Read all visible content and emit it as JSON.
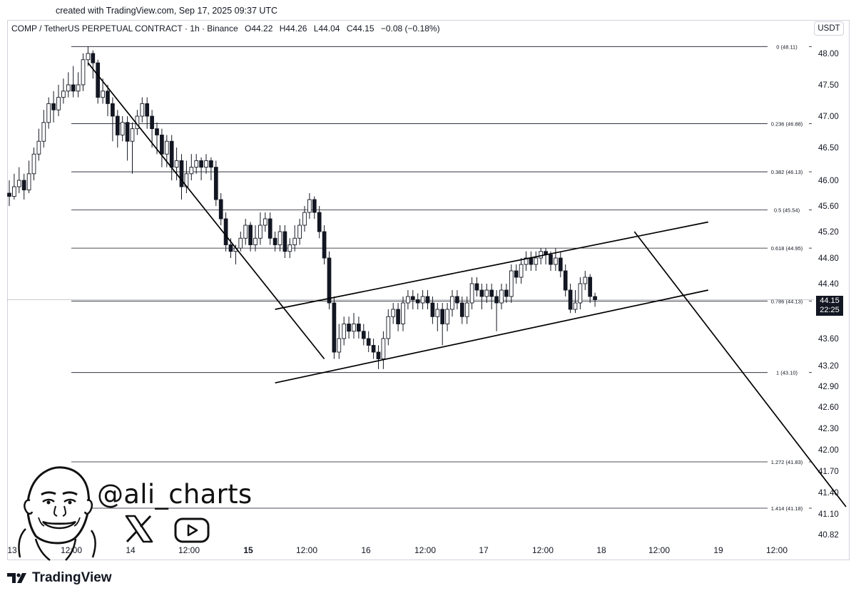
{
  "created_line": "created with TradingView.com, Sep 17, 2025 09:37 UTC",
  "header": {
    "symbol": "COMP / TetherUS PERPETUAL CONTRACT · 1h · Binance",
    "open": "O44.22",
    "high": "H44.26",
    "low": "L44.04",
    "close": "C44.15",
    "change": "−0.08 (−0.18%)"
  },
  "currency": "USDT",
  "price_tag": {
    "price": "44.15",
    "countdown": "22:25"
  },
  "social": {
    "handle": "@ali_charts",
    "icons": [
      "x-logo-icon",
      "youtube-play-icon"
    ]
  },
  "brand": {
    "name": "TradingView",
    "icon": "tradingview-logo-icon"
  },
  "chart_data": {
    "type": "candlestick",
    "y_ticks": [
      48.0,
      47.5,
      47.0,
      46.5,
      46.0,
      45.6,
      45.2,
      44.8,
      44.4,
      44.0,
      43.6,
      43.2,
      42.9,
      42.6,
      42.3,
      42.0,
      41.7,
      41.4,
      41.1,
      40.82
    ],
    "y_tick_labels": [
      "48.00",
      "47.50",
      "47.00",
      "46.50",
      "46.00",
      "45.60",
      "45.20",
      "44.80",
      "44.40",
      "44.00",
      "43.60",
      "43.20",
      "42.90",
      "42.60",
      "42.30",
      "42.00",
      "41.70",
      "41.40",
      "41.10",
      "40.82"
    ],
    "x_ticks": [
      {
        "label": "13",
        "bold": false
      },
      {
        "label": "12:00",
        "bold": false
      },
      {
        "label": "14",
        "bold": false
      },
      {
        "label": "12:00",
        "bold": false
      },
      {
        "label": "15",
        "bold": true
      },
      {
        "label": "12:00",
        "bold": false
      },
      {
        "label": "16",
        "bold": false
      },
      {
        "label": "12:00",
        "bold": false
      },
      {
        "label": "17",
        "bold": false
      },
      {
        "label": "12:00",
        "bold": false
      },
      {
        "label": "18",
        "bold": false
      },
      {
        "label": "12:00",
        "bold": false
      },
      {
        "label": "19",
        "bold": false
      },
      {
        "label": "12:00",
        "bold": false
      }
    ],
    "fib_levels": [
      {
        "ratio": "0",
        "price": 48.11,
        "label": "0 (48.11)"
      },
      {
        "ratio": "0.236",
        "price": 46.88,
        "label": "0.236 (46.88)"
      },
      {
        "ratio": "0.382",
        "price": 46.13,
        "label": "0.382 (46.13)"
      },
      {
        "ratio": "0.5",
        "price": 45.54,
        "label": "0.5 (45.54)"
      },
      {
        "ratio": "0.618",
        "price": 44.95,
        "label": "0.618 (44.95)"
      },
      {
        "ratio": "0.786",
        "price": 44.13,
        "label": "0.786 (44.13)"
      },
      {
        "ratio": "1",
        "price": 43.1,
        "label": "1 (43.10)"
      },
      {
        "ratio": "1.272",
        "price": 41.83,
        "label": "1.272 (41.83)"
      },
      {
        "ratio": "1.414",
        "price": 41.18,
        "label": "1.414 (41.18)"
      }
    ],
    "last_price": 44.15,
    "candles": [
      [
        45.8,
        45.75,
        46.0,
        45.6
      ],
      [
        45.75,
        45.9,
        46.1,
        45.7
      ],
      [
        45.9,
        46.0,
        46.2,
        45.8
      ],
      [
        46.0,
        45.85,
        46.1,
        45.7
      ],
      [
        45.85,
        46.1,
        46.3,
        45.8
      ],
      [
        46.1,
        46.4,
        46.5,
        46.0
      ],
      [
        46.4,
        46.6,
        46.8,
        46.3
      ],
      [
        46.6,
        46.9,
        47.1,
        46.5
      ],
      [
        46.9,
        47.2,
        47.3,
        46.8
      ],
      [
        47.2,
        47.1,
        47.4,
        46.9
      ],
      [
        47.1,
        47.3,
        47.5,
        47.0
      ],
      [
        47.3,
        47.4,
        47.6,
        47.2
      ],
      [
        47.4,
        47.5,
        47.7,
        47.3
      ],
      [
        47.5,
        47.4,
        47.8,
        47.3
      ],
      [
        47.4,
        47.5,
        47.7,
        47.3
      ],
      [
        47.5,
        47.9,
        48.0,
        47.4
      ],
      [
        47.9,
        48.0,
        48.11,
        47.8
      ],
      [
        48.0,
        47.85,
        48.05,
        47.6
      ],
      [
        47.85,
        47.3,
        47.9,
        47.2
      ],
      [
        47.3,
        47.4,
        47.6,
        47.2
      ],
      [
        47.4,
        47.2,
        47.5,
        47.0
      ],
      [
        47.2,
        47.0,
        47.3,
        46.6
      ],
      [
        47.0,
        46.7,
        47.1,
        46.5
      ],
      [
        46.7,
        46.9,
        47.0,
        46.6
      ],
      [
        46.9,
        46.6,
        47.0,
        46.3
      ],
      [
        46.6,
        46.8,
        46.9,
        46.1
      ],
      [
        46.8,
        47.0,
        47.1,
        46.7
      ],
      [
        47.0,
        47.2,
        47.3,
        46.9
      ],
      [
        47.2,
        47.0,
        47.3,
        46.8
      ],
      [
        47.0,
        46.8,
        47.1,
        46.5
      ],
      [
        46.8,
        46.7,
        46.9,
        46.4
      ],
      [
        46.7,
        46.4,
        46.8,
        46.2
      ],
      [
        46.4,
        46.6,
        46.7,
        46.2
      ],
      [
        46.6,
        46.2,
        46.7,
        46.0
      ],
      [
        46.2,
        46.3,
        46.5,
        46.0
      ],
      [
        46.3,
        45.9,
        46.4,
        45.7
      ],
      [
        45.9,
        46.1,
        46.3,
        45.8
      ],
      [
        46.1,
        46.2,
        46.4,
        46.0
      ],
      [
        46.2,
        46.3,
        46.4,
        46.1
      ],
      [
        46.3,
        46.2,
        46.35,
        46.0
      ],
      [
        46.2,
        46.3,
        46.4,
        46.1
      ],
      [
        46.3,
        46.2,
        46.35,
        46.0
      ],
      [
        46.2,
        45.7,
        46.3,
        45.6
      ],
      [
        45.7,
        45.4,
        45.8,
        45.3
      ],
      [
        45.4,
        45.0,
        45.5,
        44.9
      ],
      [
        45.0,
        44.9,
        45.1,
        44.8
      ],
      [
        44.9,
        44.95,
        45.0,
        44.7
      ],
      [
        44.95,
        45.1,
        45.2,
        44.9
      ],
      [
        45.1,
        45.3,
        45.4,
        45.0
      ],
      [
        45.3,
        45.0,
        45.35,
        44.9
      ],
      [
        45.0,
        45.1,
        45.3,
        44.9
      ],
      [
        45.1,
        45.3,
        45.5,
        45.0
      ],
      [
        45.3,
        45.4,
        45.5,
        45.2
      ],
      [
        45.4,
        45.1,
        45.5,
        45.0
      ],
      [
        45.1,
        45.0,
        45.2,
        44.9
      ],
      [
        45.0,
        45.2,
        45.3,
        44.9
      ],
      [
        45.2,
        44.9,
        45.3,
        44.8
      ],
      [
        44.9,
        45.0,
        45.1,
        44.8
      ],
      [
        45.0,
        45.1,
        45.3,
        44.9
      ],
      [
        45.1,
        45.3,
        45.4,
        45.0
      ],
      [
        45.3,
        45.5,
        45.6,
        45.2
      ],
      [
        45.5,
        45.7,
        45.8,
        45.4
      ],
      [
        45.7,
        45.5,
        45.75,
        45.4
      ],
      [
        45.5,
        45.2,
        45.6,
        45.1
      ],
      [
        45.2,
        44.8,
        45.3,
        44.7
      ],
      [
        44.8,
        44.1,
        44.9,
        44.0
      ],
      [
        44.1,
        43.4,
        44.2,
        43.3
      ],
      [
        43.4,
        43.6,
        43.8,
        43.3
      ],
      [
        43.6,
        43.8,
        43.9,
        43.5
      ],
      [
        43.8,
        43.7,
        43.9,
        43.6
      ],
      [
        43.7,
        43.8,
        43.95,
        43.6
      ],
      [
        43.8,
        43.7,
        43.9,
        43.6
      ],
      [
        43.7,
        43.6,
        43.8,
        43.5
      ],
      [
        43.6,
        43.5,
        43.7,
        43.4
      ],
      [
        43.5,
        43.4,
        43.6,
        43.3
      ],
      [
        43.4,
        43.3,
        43.5,
        43.15
      ],
      [
        43.3,
        43.6,
        43.7,
        43.15
      ],
      [
        43.6,
        43.9,
        44.0,
        43.5
      ],
      [
        43.9,
        44.0,
        44.1,
        43.8
      ],
      [
        44.0,
        43.8,
        44.1,
        43.7
      ],
      [
        43.8,
        44.1,
        44.2,
        43.7
      ],
      [
        44.1,
        44.2,
        44.3,
        44.0
      ],
      [
        44.2,
        44.15,
        44.3,
        44.0
      ],
      [
        44.15,
        44.1,
        44.25,
        44.0
      ],
      [
        44.1,
        44.2,
        44.3,
        44.0
      ],
      [
        44.2,
        44.1,
        44.3,
        44.0
      ],
      [
        44.1,
        43.9,
        44.2,
        43.8
      ],
      [
        43.9,
        44.0,
        44.1,
        43.7
      ],
      [
        44.0,
        43.8,
        44.1,
        43.5
      ],
      [
        43.8,
        44.0,
        44.1,
        43.7
      ],
      [
        44.0,
        44.2,
        44.3,
        43.9
      ],
      [
        44.2,
        44.1,
        44.3,
        44.0
      ],
      [
        44.1,
        43.9,
        44.2,
        43.8
      ],
      [
        43.9,
        44.1,
        44.2,
        43.8
      ],
      [
        44.1,
        44.4,
        44.5,
        44.0
      ],
      [
        44.4,
        44.3,
        44.5,
        44.2
      ],
      [
        44.3,
        44.2,
        44.4,
        44.0
      ],
      [
        44.2,
        44.3,
        44.4,
        44.1
      ],
      [
        44.3,
        44.2,
        44.4,
        44.0
      ],
      [
        44.2,
        44.1,
        44.3,
        43.7
      ],
      [
        44.1,
        44.3,
        44.4,
        44.0
      ],
      [
        44.3,
        44.2,
        44.4,
        44.1
      ],
      [
        44.2,
        44.6,
        44.7,
        44.1
      ],
      [
        44.6,
        44.5,
        44.7,
        44.4
      ],
      [
        44.5,
        44.7,
        44.8,
        44.4
      ],
      [
        44.7,
        44.8,
        44.9,
        44.6
      ],
      [
        44.8,
        44.7,
        44.9,
        44.6
      ],
      [
        44.7,
        44.8,
        44.9,
        44.6
      ],
      [
        44.8,
        44.9,
        44.95,
        44.7
      ],
      [
        44.9,
        44.85,
        44.95,
        44.7
      ],
      [
        44.85,
        44.7,
        44.9,
        44.6
      ],
      [
        44.7,
        44.8,
        44.95,
        44.6
      ],
      [
        44.8,
        44.6,
        44.9,
        44.5
      ],
      [
        44.6,
        44.3,
        44.7,
        44.2
      ],
      [
        44.3,
        44.0,
        44.4,
        43.95
      ],
      [
        44.0,
        44.1,
        44.3,
        43.95
      ],
      [
        44.1,
        44.4,
        44.5,
        44.0
      ],
      [
        44.4,
        44.5,
        44.6,
        44.3
      ],
      [
        44.5,
        44.2,
        44.55,
        44.1
      ],
      [
        44.2,
        44.15,
        44.26,
        44.04
      ]
    ],
    "trendlines": [
      {
        "name": "down-trendline",
        "from": [
          16,
          47.85
        ],
        "to": [
          64,
          43.3
        ]
      },
      {
        "name": "channel-upper",
        "from": [
          54,
          44.0
        ],
        "to": [
          142,
          45.35
        ]
      },
      {
        "name": "channel-lower",
        "from": [
          54,
          42.95
        ],
        "to": [
          142,
          44.3
        ]
      },
      {
        "name": "projection-line",
        "from": [
          127,
          45.2
        ],
        "to": [
          170,
          41.2
        ]
      }
    ]
  }
}
